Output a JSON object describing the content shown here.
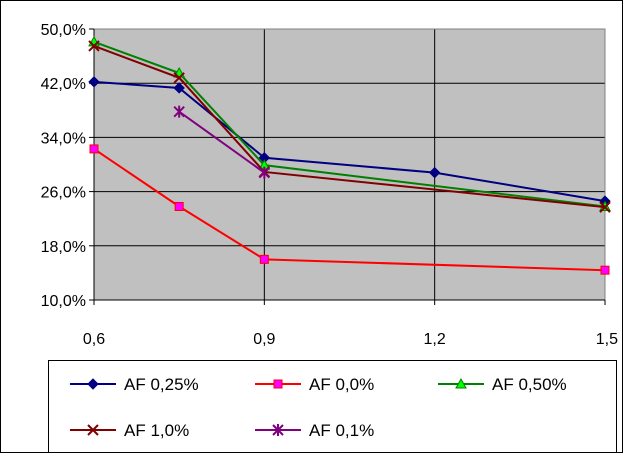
{
  "chart_data": {
    "type": "line",
    "title": "",
    "xlabel": "",
    "ylabel": "",
    "xlim": [
      0.6,
      1.5
    ],
    "ylim": [
      10.0,
      50.0
    ],
    "x_ticks": [
      "0,6",
      "0,9",
      "1,2",
      "1,5"
    ],
    "x_tick_values": [
      0.6,
      0.9,
      1.2,
      1.5
    ],
    "y_ticks": [
      "10,0%",
      "18,0%",
      "26,0%",
      "34,0%",
      "42,0%",
      "50,0%"
    ],
    "y_tick_values": [
      10,
      18,
      26,
      34,
      42,
      50
    ],
    "grid": true,
    "legend_position": "bottom",
    "series": [
      {
        "name": "AF 0,25%",
        "color": "#000080",
        "marker": "diamond",
        "points": [
          [
            0.6,
            42.2
          ],
          [
            0.75,
            41.3
          ],
          [
            0.9,
            31.0
          ],
          [
            1.2,
            28.8
          ],
          [
            1.5,
            24.6
          ]
        ]
      },
      {
        "name": "AF 0,0%",
        "color": "#ff0000",
        "marker": "square",
        "points": [
          [
            0.6,
            32.3
          ],
          [
            0.75,
            23.8
          ],
          [
            0.9,
            16.0
          ],
          [
            1.5,
            14.4
          ]
        ]
      },
      {
        "name": "AF 0,50%",
        "color": "#008000",
        "marker": "triangle",
        "points": [
          [
            0.6,
            48.1
          ],
          [
            0.75,
            43.5
          ],
          [
            0.9,
            29.9
          ],
          [
            1.5,
            23.8
          ]
        ]
      },
      {
        "name": "AF 1,0%",
        "color": "#800000",
        "marker": "x",
        "points": [
          [
            0.6,
            47.5
          ],
          [
            0.75,
            42.8
          ],
          [
            0.9,
            28.9
          ],
          [
            1.5,
            23.7
          ]
        ]
      },
      {
        "name": "AF 0,1%",
        "color": "#800080",
        "marker": "star",
        "points": [
          [
            0.75,
            37.8
          ],
          [
            0.9,
            28.8
          ]
        ]
      }
    ]
  }
}
